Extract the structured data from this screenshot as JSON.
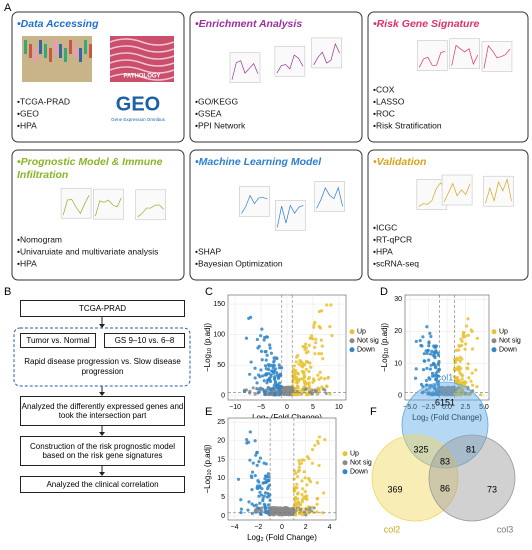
{
  "panel_labels": [
    "A",
    "B",
    "C",
    "D",
    "E",
    "F"
  ],
  "panel_a": [
    {
      "title": [
        "•Data Accessing"
      ],
      "items": [
        "•TCGA-PRAD",
        "•GEO",
        "•HPA"
      ]
    },
    {
      "title": [
        "•Enrichment Analysis"
      ],
      "items": [
        "•GO/KEGG",
        "•GSEA",
        "•PPI Network"
      ]
    },
    {
      "title": [
        "•Risk Gene Signature"
      ],
      "items": [
        "•COX",
        "•LASSO",
        "•ROC",
        "•Risk Stratification"
      ]
    },
    {
      "title": [
        "•Prognostic Model & Immune",
        "Infiltration"
      ],
      "items": [
        "•Nomogram",
        "•Univaruiate and multivariate analysis",
        "•HPA"
      ]
    },
    {
      "title": [
        "•Machine Learning Model"
      ],
      "items": [
        "•SHAP",
        "•Bayesian Optimization"
      ]
    },
    {
      "title": [
        "•Validation"
      ],
      "items": [
        "•ICGC",
        "•RT-qPCR",
        "•HPA",
        "•scRNA-seq"
      ]
    }
  ],
  "panel_a_image_texts": {
    "pathology": "PATHOLOGY",
    "geo": "GEO",
    "geo_sub": "Gene Expression Omnibus"
  },
  "flowchart": {
    "source": "TCGA-PRAD",
    "comparisons": [
      "Tumor vs. Normal",
      "GS 9–10 vs. 6–8",
      "Rapid disease progression vs. Slow disease progression"
    ],
    "steps": [
      "Analyzed the differently expressed genes and took the intersection part",
      "Construction of the risk prognostic model based on the risk gene signatures",
      "Analyzed the clinical correlation"
    ]
  },
  "axis_labels": {
    "x": {
      "main": "Log",
      "sub": "2",
      "rest": " (Fold Change)"
    },
    "y": {
      "main": "−Log",
      "sub": "10",
      "rest": " (p.adj)"
    }
  },
  "volcano": [
    {
      "xticks": [
        "−10",
        "−5",
        "0",
        "5",
        "10"
      ],
      "yticks": [
        "0",
        "50",
        "100",
        "150"
      ],
      "legend": [
        "Up",
        "Not sig",
        "Down"
      ]
    },
    {
      "xticks": [
        "−5.0",
        "−2.5",
        "0.0",
        "2.5",
        "5.0"
      ],
      "yticks": [
        "0",
        "10",
        "20",
        "30"
      ],
      "legend": [
        "Up",
        "Not sig",
        "Down"
      ]
    },
    {
      "xticks": [
        "−4",
        "−2",
        "0",
        "2",
        "4"
      ],
      "yticks": [
        "0",
        "5",
        "10",
        "15",
        "20",
        "25"
      ],
      "legend": [
        "Up",
        "Not sig",
        "Down"
      ]
    }
  ],
  "venn": {
    "sets": [
      "col1",
      "col2",
      "col3"
    ],
    "counts": {
      "col1_only": 6151,
      "col1_col2": 325,
      "col1_col3": 81,
      "all": 83,
      "col2_only": 369,
      "col2_col3": 86,
      "col3_only": 73
    }
  }
}
